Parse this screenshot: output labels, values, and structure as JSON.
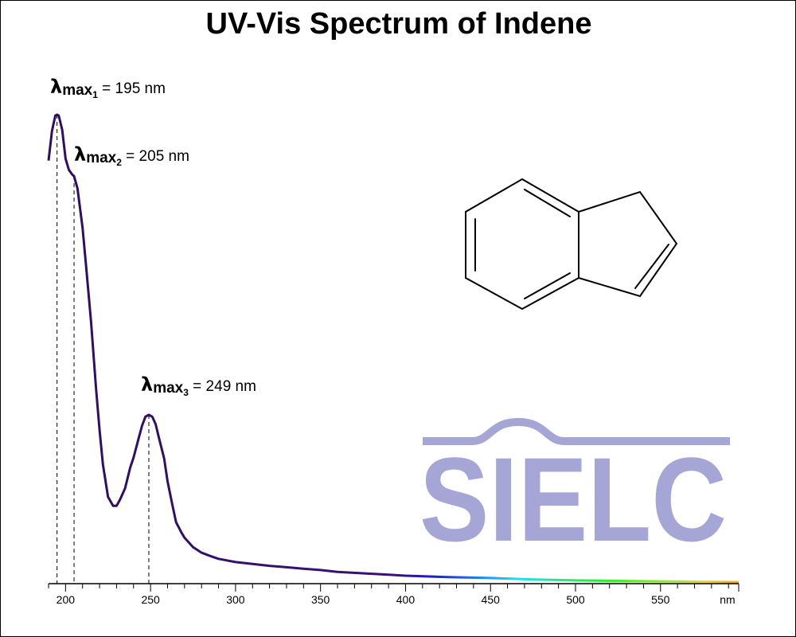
{
  "chart_data": {
    "type": "line",
    "title": "UV-Vis Spectrum of Indene",
    "xlabel": "",
    "ylabel": "",
    "x_unit_label": "nm",
    "xlim": [
      190,
      596
    ],
    "ylim": [
      0,
      1
    ],
    "x_ticks": [
      200,
      250,
      300,
      350,
      400,
      450,
      500,
      550
    ],
    "grid": false,
    "legend": "none",
    "series": [
      {
        "x": [
          190,
          192,
          194,
          195,
          196,
          198,
          200,
          202,
          204,
          205,
          207,
          210,
          212,
          215,
          218,
          220,
          222,
          225,
          228,
          230,
          232,
          235,
          238,
          240,
          243,
          245,
          247,
          249,
          251,
          253,
          255,
          258,
          260,
          263,
          265,
          268,
          270,
          275,
          280,
          285,
          290,
          300,
          310,
          320,
          330,
          340,
          350,
          360,
          375,
          390,
          400,
          425,
          450,
          475,
          500,
          525,
          550,
          575,
          596
        ],
        "y": [
          0.902,
          0.965,
          0.998,
          1.0,
          0.998,
          0.968,
          0.906,
          0.882,
          0.872,
          0.869,
          0.843,
          0.759,
          0.68,
          0.558,
          0.413,
          0.327,
          0.254,
          0.185,
          0.166,
          0.166,
          0.179,
          0.203,
          0.247,
          0.269,
          0.31,
          0.337,
          0.356,
          0.36,
          0.356,
          0.34,
          0.31,
          0.267,
          0.218,
          0.165,
          0.131,
          0.11,
          0.098,
          0.078,
          0.066,
          0.059,
          0.053,
          0.046,
          0.042,
          0.038,
          0.035,
          0.032,
          0.029,
          0.025,
          0.022,
          0.019,
          0.017,
          0.014,
          0.012,
          0.009,
          0.007,
          0.006,
          0.005,
          0.004,
          0.003
        ]
      }
    ],
    "annotations": [
      {
        "lambda": "λ",
        "max": "max",
        "sub": "1",
        "text": " = 195 nm",
        "x": 195
      },
      {
        "lambda": "λ",
        "max": "max",
        "sub": "2",
        "text": " = 205 nm",
        "x": 205
      },
      {
        "lambda": "λ",
        "max": "max",
        "sub": "3",
        "text": " = 249 nm",
        "x": 249
      }
    ]
  },
  "logo": {
    "text": "SIELC",
    "color": "#a6a6d6"
  },
  "structure": {
    "depicts": "indene",
    "stroke_color": "#000000"
  },
  "colors": {
    "curve": "#2e0f5a",
    "axis": "#000000"
  }
}
